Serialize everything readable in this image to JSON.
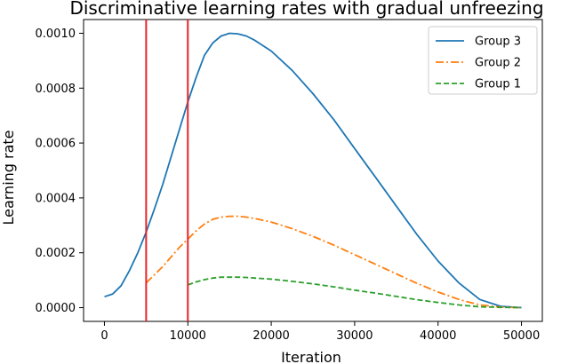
{
  "chart_data": {
    "type": "line",
    "title": "Discriminative learning rates with gradual unfreezing",
    "xlabel": "Iteration",
    "ylabel": "Learning rate",
    "xlim": [
      -2500,
      52500
    ],
    "ylim": [
      -5e-05,
      0.00105
    ],
    "xticks": [
      0,
      10000,
      20000,
      30000,
      40000,
      50000
    ],
    "xtick_labels": [
      "0",
      "10000",
      "20000",
      "30000",
      "40000",
      "50000"
    ],
    "yticks": [
      0.0,
      0.0002,
      0.0004,
      0.0006,
      0.0008,
      0.001
    ],
    "ytick_labels": [
      "0.0000",
      "0.0002",
      "0.0004",
      "0.0006",
      "0.0008",
      "0.0010"
    ],
    "grid": false,
    "legend_position": "top-right",
    "vlines": [
      {
        "x": 5000,
        "color": "#e8242a"
      },
      {
        "x": 10000,
        "color": "#e8242a"
      }
    ],
    "series": [
      {
        "name": "Group 3",
        "color": "#1f77b4",
        "style": "solid",
        "x": [
          0,
          1000,
          2000,
          3000,
          4000,
          5000,
          6000,
          7000,
          8000,
          9000,
          10000,
          11000,
          12000,
          13000,
          14000,
          15000,
          16000,
          17000,
          18000,
          19000,
          20000,
          22500,
          25000,
          27500,
          30000,
          32500,
          35000,
          37500,
          40000,
          42500,
          45000,
          47500,
          50000
        ],
        "values": [
          4e-05,
          5e-05,
          8e-05,
          0.000135,
          0.0002,
          0.000275,
          0.00036,
          0.00045,
          0.00055,
          0.00065,
          0.00075,
          0.00084,
          0.00092,
          0.000965,
          0.00099,
          0.001,
          0.000998,
          0.00099,
          0.000975,
          0.000955,
          0.000935,
          0.000865,
          0.00078,
          0.000685,
          0.00058,
          0.000475,
          0.00037,
          0.000265,
          0.00017,
          9e-05,
          3e-05,
          5e-06,
          0.0
        ]
      },
      {
        "name": "Group 2",
        "color": "#ff7f0e",
        "style": "dashdot",
        "x": [
          5000,
          6000,
          7000,
          8000,
          9000,
          10000,
          11000,
          12000,
          13000,
          14000,
          15000,
          16000,
          17000,
          18000,
          20000,
          22500,
          25000,
          27500,
          30000,
          32500,
          35000,
          37500,
          40000,
          42500,
          45000,
          47500,
          50000
        ],
        "values": [
          9e-05,
          0.00012,
          0.00015,
          0.000185,
          0.00022,
          0.00025,
          0.00028,
          0.000305,
          0.000322,
          0.00033,
          0.000333,
          0.000333,
          0.00033,
          0.000325,
          0.000312,
          0.000288,
          0.00026,
          0.000228,
          0.000193,
          0.000158,
          0.000123,
          8.8e-05,
          5.7e-05,
          3e-05,
          1e-05,
          2e-06,
          0.0
        ]
      },
      {
        "name": "Group 1",
        "color": "#2ca02c",
        "style": "dashed",
        "x": [
          10000,
          11000,
          12000,
          13000,
          14000,
          15000,
          16000,
          17000,
          18000,
          20000,
          22500,
          25000,
          27500,
          30000,
          32500,
          35000,
          37500,
          40000,
          42500,
          45000,
          47500,
          50000
        ],
        "values": [
          8.3e-05,
          9.4e-05,
          0.000102,
          0.000108,
          0.000111,
          0.000111,
          0.000111,
          0.00011,
          0.000108,
          0.000104,
          9.6e-05,
          8.7e-05,
          7.6e-05,
          6.4e-05,
          5.3e-05,
          4.1e-05,
          2.9e-05,
          1.9e-05,
          1e-05,
          3e-06,
          1e-06,
          0.0
        ]
      }
    ]
  }
}
